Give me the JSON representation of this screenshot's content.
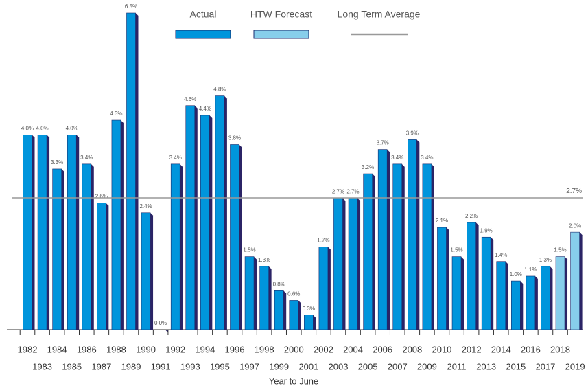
{
  "chart_data": {
    "type": "bar",
    "categories": [
      "1982",
      "1983",
      "1984",
      "1985",
      "1986",
      "1987",
      "1988",
      "1989",
      "1990",
      "1991",
      "1992",
      "1993",
      "1994",
      "1995",
      "1996",
      "1997",
      "1998",
      "1999",
      "2000",
      "2001",
      "2002",
      "2003",
      "2004",
      "2005",
      "2006",
      "2007",
      "2008",
      "2009",
      "2010",
      "2011",
      "2012",
      "2013",
      "2014",
      "2015",
      "2016",
      "2017",
      "2018",
      "2019"
    ],
    "series": [
      {
        "name": "Actual",
        "color": "#0095dc",
        "values": [
          4.0,
          4.0,
          3.3,
          4.0,
          3.4,
          2.6,
          4.3,
          6.5,
          2.4,
          0.0,
          3.4,
          4.6,
          4.4,
          4.8,
          3.8,
          1.5,
          1.3,
          0.8,
          0.6,
          0.3,
          1.7,
          2.7,
          2.7,
          3.2,
          3.7,
          3.4,
          3.9,
          3.4,
          2.1,
          1.5,
          2.2,
          1.9,
          1.4,
          1.0,
          1.1,
          1.3,
          null,
          null
        ],
        "value_labels": [
          "4.0%",
          "4.0%",
          "3.3%",
          "4.0%",
          "3.4%",
          "2.6%",
          "4.3%",
          "6.5%",
          "2.4%",
          "0.0%",
          "3.4%",
          "4.6%",
          "4.4%",
          "4.8%",
          "3.8%",
          "1.5%",
          "1.3%",
          "0.8%",
          "0.6%",
          "0.3%",
          "1.7%",
          "2.7%",
          "2.7%",
          "3.2%",
          "3.7%",
          "3.4%",
          "3.9%",
          "3.4%",
          "2.1%",
          "1.5%",
          "2.2%",
          "1.9%",
          "1.4%",
          "1.0%",
          "1.1%",
          "1.3%",
          null,
          null
        ]
      },
      {
        "name": "HTW Forecast",
        "color": "#87ceeb",
        "values": [
          null,
          null,
          null,
          null,
          null,
          null,
          null,
          null,
          null,
          null,
          null,
          null,
          null,
          null,
          null,
          null,
          null,
          null,
          null,
          null,
          null,
          null,
          null,
          null,
          null,
          null,
          null,
          null,
          null,
          null,
          null,
          null,
          null,
          null,
          null,
          null,
          1.5,
          2.0
        ],
        "value_labels": [
          null,
          null,
          null,
          null,
          null,
          null,
          null,
          null,
          null,
          null,
          null,
          null,
          null,
          null,
          null,
          null,
          null,
          null,
          null,
          null,
          null,
          null,
          null,
          null,
          null,
          null,
          null,
          null,
          null,
          null,
          null,
          null,
          null,
          null,
          null,
          null,
          "1.5%",
          "2.0%"
        ]
      }
    ],
    "average": {
      "name": "Long Term Average",
      "value": 2.7,
      "label": "2.7%",
      "color": "#999999"
    },
    "x_label": "Year to June",
    "ylim": [
      0,
      6.5
    ]
  }
}
